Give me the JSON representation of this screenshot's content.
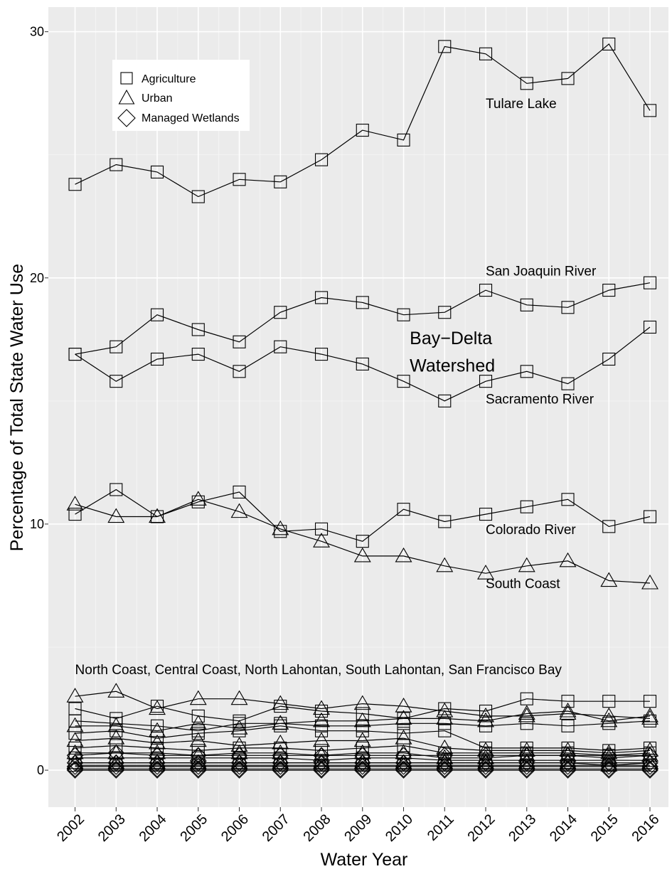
{
  "chart_data": {
    "type": "line",
    "xlabel": "Water Year",
    "ylabel": "Percentage of Total State Water Use",
    "x": [
      2002,
      2003,
      2004,
      2005,
      2006,
      2007,
      2008,
      2009,
      2010,
      2011,
      2012,
      2013,
      2014,
      2015,
      2016
    ],
    "x_tick_labels": [
      "2002",
      "2003",
      "2004",
      "2005",
      "2006",
      "2007",
      "2008",
      "2009",
      "2010",
      "2011",
      "2012",
      "2013",
      "2014",
      "2015",
      "2016"
    ],
    "y_ticks": [
      0,
      10,
      20,
      30
    ],
    "y_tick_labels": [
      "0",
      "10",
      "20",
      "30"
    ],
    "xlim": [
      2001.35,
      2016.45
    ],
    "ylim": [
      -1.5,
      31
    ],
    "grid": true,
    "legend_position": "top-left",
    "legend": [
      {
        "label": "Agriculture",
        "marker": "square"
      },
      {
        "label": "Urban",
        "marker": "triangle"
      },
      {
        "label": "Managed Wetlands",
        "marker": "diamond"
      }
    ],
    "annotations": [
      {
        "text": "Tulare Lake",
        "x": 2012,
        "y": 26.9,
        "size": 19
      },
      {
        "text": "San Joaquin River",
        "x": 2012,
        "y": 20.1,
        "size": 19
      },
      {
        "text": "Bay−Delta",
        "x": 2010.15,
        "y": 17.3,
        "size": 25
      },
      {
        "text": "Watershed",
        "x": 2010.15,
        "y": 16.2,
        "size": 25
      },
      {
        "text": "Sacramento River",
        "x": 2012,
        "y": 14.9,
        "size": 19
      },
      {
        "text": "Colorado River",
        "x": 2012,
        "y": 9.6,
        "size": 19
      },
      {
        "text": "South Coast",
        "x": 2012,
        "y": 7.4,
        "size": 19
      },
      {
        "text": "North Coast, Central Coast, North Lahontan, South Lahontan, San Francisco Bay",
        "x": 2002,
        "y": 3.9,
        "size": 19
      }
    ],
    "series": [
      {
        "marker": "square",
        "values": [
          23.8,
          24.6,
          24.3,
          23.3,
          24.0,
          23.9,
          24.8,
          26.0,
          25.6,
          29.4,
          29.1,
          27.9,
          28.1,
          29.5,
          26.8
        ]
      },
      {
        "marker": "square",
        "values": [
          16.9,
          17.2,
          18.5,
          17.9,
          17.4,
          18.6,
          19.2,
          19.0,
          18.5,
          18.6,
          19.5,
          18.9,
          18.8,
          19.5,
          19.8
        ]
      },
      {
        "marker": "square",
        "values": [
          16.9,
          15.8,
          16.7,
          16.9,
          16.2,
          17.2,
          16.9,
          16.5,
          15.8,
          15.0,
          15.8,
          16.2,
          15.7,
          16.7,
          18.0
        ]
      },
      {
        "marker": "square",
        "values": [
          10.4,
          11.4,
          10.3,
          10.9,
          11.3,
          9.7,
          9.8,
          9.3,
          10.6,
          10.1,
          10.4,
          10.7,
          11.0,
          9.9,
          10.3
        ]
      },
      {
        "marker": "triangle",
        "values": [
          10.8,
          10.3,
          10.3,
          11.0,
          10.5,
          9.8,
          9.3,
          8.7,
          8.7,
          8.3,
          8.0,
          8.3,
          8.5,
          7.7,
          7.6
        ]
      },
      {
        "marker": "square",
        "values": [
          2.5,
          2.1,
          2.6,
          2.2,
          2.0,
          2.6,
          2.4,
          2.3,
          2.1,
          2.5,
          2.4,
          2.9,
          2.8,
          2.8,
          2.8
        ]
      },
      {
        "marker": "triangle",
        "values": [
          3.0,
          3.2,
          2.5,
          2.9,
          2.9,
          2.7,
          2.5,
          2.7,
          2.6,
          2.4,
          2.2,
          2.2,
          2.3,
          2.2,
          2.1
        ]
      },
      {
        "marker": "square",
        "values": [
          2.0,
          1.9,
          1.8,
          1.6,
          1.9,
          1.9,
          1.8,
          1.8,
          1.9,
          1.9,
          1.8,
          1.9,
          1.8,
          1.9,
          2.0
        ]
      },
      {
        "marker": "triangle",
        "values": [
          1.8,
          1.8,
          1.6,
          1.9,
          1.7,
          1.9,
          2.0,
          2.0,
          2.1,
          2.1,
          2.0,
          2.3,
          2.4,
          2.0,
          2.2
        ]
      },
      {
        "marker": "square",
        "values": [
          1.5,
          1.6,
          1.3,
          1.5,
          1.6,
          1.8,
          1.6,
          1.6,
          1.5,
          1.6,
          0.9,
          0.9,
          0.9,
          0.8,
          0.9
        ]
      },
      {
        "marker": "triangle",
        "values": [
          1.2,
          1.3,
          1.1,
          1.2,
          1.0,
          1.1,
          1.2,
          1.2,
          1.3,
          0.9,
          0.8,
          0.8,
          0.8,
          0.7,
          0.8
        ]
      },
      {
        "marker": "square",
        "values": [
          0.9,
          1.0,
          0.9,
          0.8,
          0.9,
          0.9,
          0.8,
          0.9,
          1.0,
          0.7,
          0.7,
          0.7,
          0.7,
          0.6,
          0.7
        ]
      },
      {
        "marker": "triangle",
        "values": [
          0.7,
          0.7,
          0.7,
          0.6,
          0.7,
          0.7,
          0.6,
          0.7,
          0.7,
          0.5,
          0.5,
          0.6,
          0.6,
          0.5,
          0.6
        ]
      },
      {
        "marker": "square",
        "values": [
          0.5,
          0.5,
          0.5,
          0.5,
          0.5,
          0.5,
          0.4,
          0.5,
          0.5,
          0.4,
          0.4,
          0.4,
          0.4,
          0.4,
          0.4
        ]
      },
      {
        "marker": "triangle",
        "values": [
          0.3,
          0.3,
          0.3,
          0.3,
          0.3,
          0.3,
          0.3,
          0.3,
          0.3,
          0.3,
          0.3,
          0.3,
          0.3,
          0.2,
          0.3
        ]
      },
      {
        "marker": "square",
        "values": [
          0.2,
          0.2,
          0.2,
          0.2,
          0.2,
          0.2,
          0.2,
          0.2,
          0.2,
          0.2,
          0.2,
          0.2,
          0.2,
          0.2,
          0.2
        ]
      },
      {
        "marker": "diamond",
        "values": [
          0.6,
          0.7,
          0.6,
          0.6,
          0.6,
          0.6,
          0.6,
          0.6,
          0.6,
          0.6,
          0.6,
          0.6,
          0.6,
          0.6,
          0.6
        ]
      },
      {
        "marker": "diamond",
        "values": [
          0.3,
          0.3,
          0.3,
          0.3,
          0.3,
          0.3,
          0.3,
          0.3,
          0.3,
          0.3,
          0.3,
          0.3,
          0.3,
          0.3,
          0.3
        ]
      },
      {
        "marker": "diamond",
        "values": [
          0.15,
          0.15,
          0.15,
          0.15,
          0.15,
          0.15,
          0.15,
          0.15,
          0.15,
          0.15,
          0.15,
          0.15,
          0.15,
          0.15,
          0.15
        ]
      },
      {
        "marker": "diamond",
        "values": [
          0.05,
          0.05,
          0.05,
          0.05,
          0.05,
          0.05,
          0.05,
          0.05,
          0.05,
          0.05,
          0.05,
          0.05,
          0.05,
          0.05,
          0.05
        ]
      },
      {
        "marker": "diamond",
        "values": [
          0.0,
          0.0,
          0.0,
          0.0,
          0.0,
          0.0,
          0.0,
          0.0,
          0.0,
          0.0,
          0.0,
          0.0,
          0.0,
          0.0,
          0.0
        ]
      }
    ]
  }
}
